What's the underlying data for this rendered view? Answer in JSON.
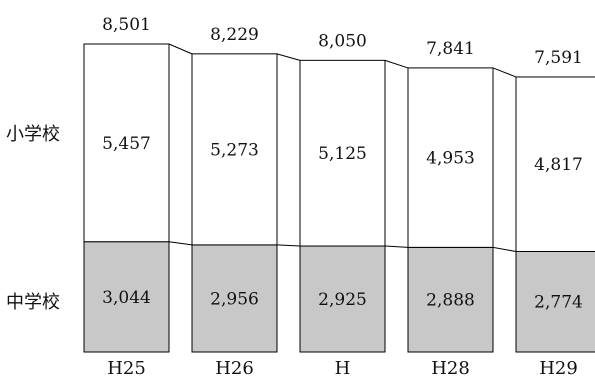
{
  "chart_data": {
    "type": "bar",
    "stacked": true,
    "categories": [
      "H25",
      "H26",
      "H",
      "H28",
      "H29"
    ],
    "series": [
      {
        "name": "中学校",
        "values": [
          3044,
          2956,
          2925,
          2888,
          2774
        ],
        "color": "#c8c8c8"
      },
      {
        "name": "小学校",
        "values": [
          5457,
          5273,
          5125,
          4953,
          4817
        ],
        "color": "#ffffff"
      }
    ],
    "totals": [
      8501,
      8229,
      8050,
      7841,
      7591
    ],
    "value_labels": {
      "中学校": [
        "3,044",
        "2,956",
        "2,925",
        "2,888",
        "2,774"
      ],
      "小学校": [
        "5,457",
        "5,273",
        "5,125",
        "4,953",
        "4,817"
      ]
    },
    "total_labels": [
      "8,501",
      "8,229",
      "8,050",
      "7,841",
      "7,591"
    ],
    "ylim": [
      0,
      8501
    ],
    "grid": false,
    "legend": "none",
    "connector_lines": true
  }
}
